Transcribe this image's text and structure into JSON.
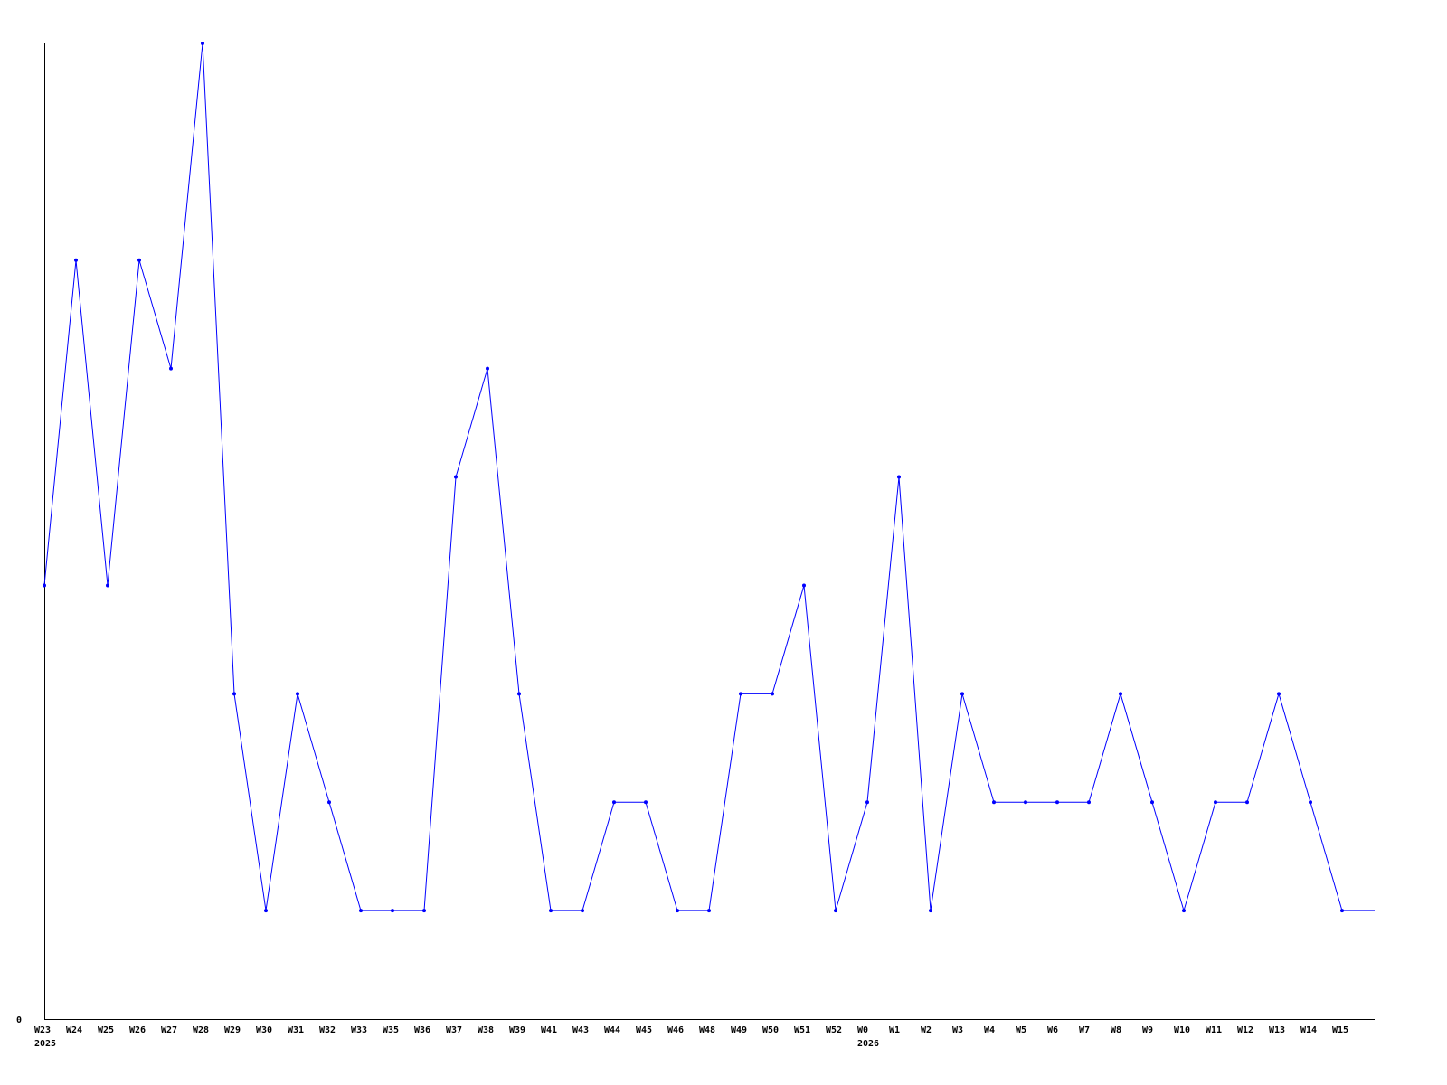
{
  "chart_data": {
    "type": "line",
    "title": "",
    "xlabel": "",
    "ylabel": "",
    "ylim": [
      0,
      9
    ],
    "y_tick_labels": [
      "0"
    ],
    "grid": false,
    "legend": "none",
    "line_color": "#0000ff",
    "categories": [
      "W23",
      "W24",
      "W25",
      "W26",
      "W27",
      "W28",
      "W29",
      "W30",
      "W31",
      "W32",
      "W33",
      "W35",
      "W36",
      "W37",
      "W38",
      "W39",
      "W41",
      "W43",
      "W44",
      "W45",
      "W46",
      "W48",
      "W49",
      "W50",
      "W51",
      "W52",
      "W0",
      "W1",
      "W2",
      "W3",
      "W4",
      "W5",
      "W6",
      "W7",
      "W8",
      "W9",
      "W10",
      "W11",
      "W12",
      "W13",
      "W14",
      "W15"
    ],
    "year_labels": [
      {
        "at": "W23",
        "text": "2025"
      },
      {
        "at": "W0",
        "text": "2026"
      }
    ],
    "series": [
      {
        "values": [
          4,
          7,
          4,
          7,
          6,
          9,
          3,
          1,
          3,
          2,
          1,
          1,
          1,
          5,
          6,
          3,
          1,
          1,
          2,
          2,
          1,
          1,
          3,
          3,
          4,
          1,
          2,
          5,
          1,
          3,
          2,
          2,
          2,
          2,
          3,
          2,
          1,
          2,
          2,
          3,
          2,
          1
        ]
      }
    ]
  }
}
